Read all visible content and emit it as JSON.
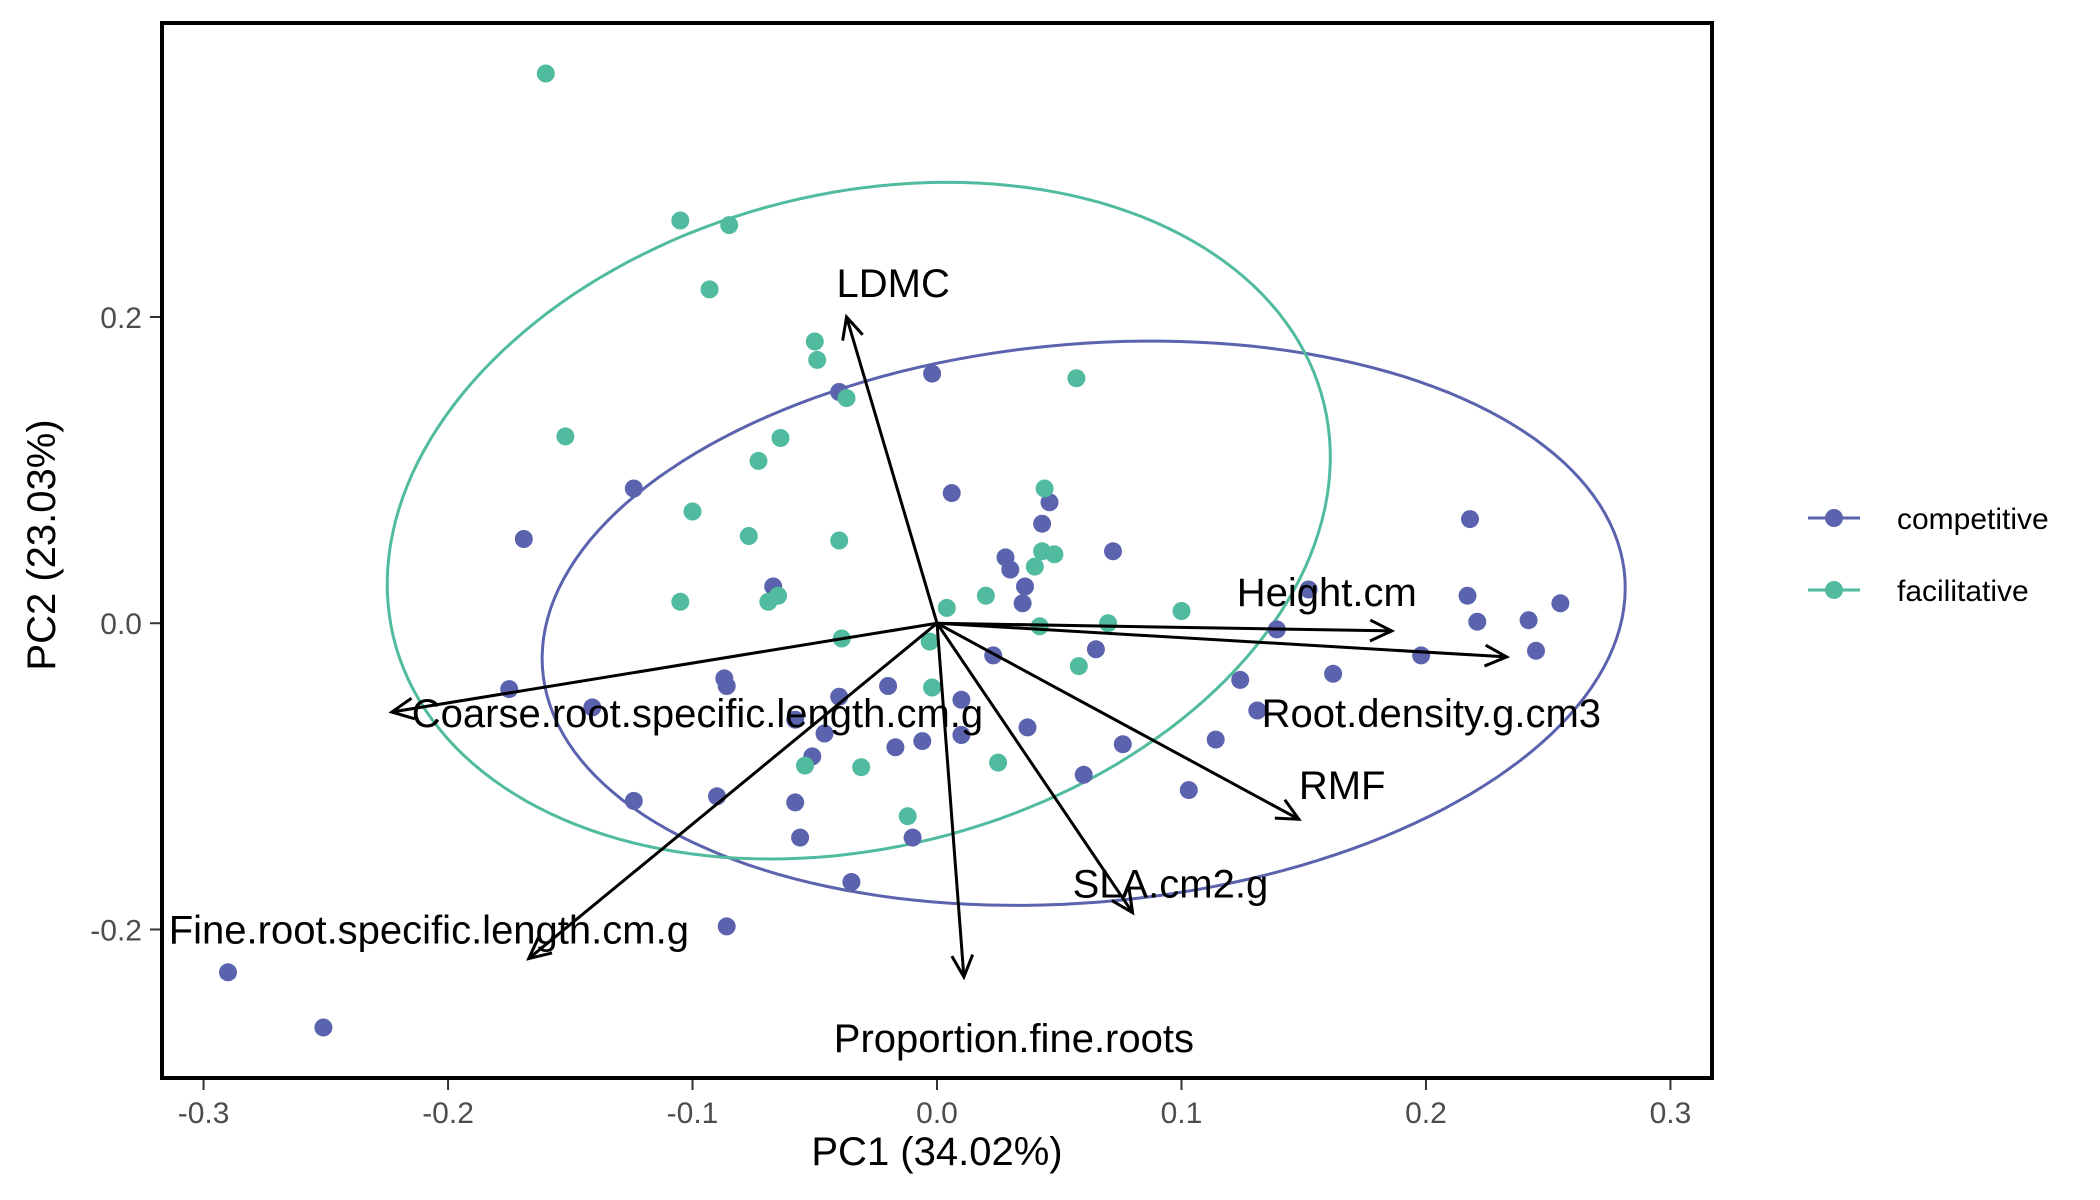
{
  "chart_data": {
    "type": "scatter",
    "xlabel": "PC1 (34.02%)",
    "ylabel": "PC2 (23.03%)",
    "xlim": [
      -0.317,
      0.317
    ],
    "ylim": [
      -0.297,
      0.392
    ],
    "x_ticks": [
      -0.3,
      -0.2,
      -0.1,
      0.0,
      0.1,
      0.2,
      0.3
    ],
    "x_tick_labels": [
      "-0.3",
      "-0.2",
      "-0.1",
      "0.0",
      "0.1",
      "0.2",
      "0.3"
    ],
    "y_ticks": [
      -0.2,
      0.0,
      0.2
    ],
    "y_tick_labels": [
      "-0.2",
      "0.0",
      "0.2"
    ],
    "grid": false,
    "legend_position": "right",
    "series": [
      {
        "name": "competitive",
        "color": "#5B63AE",
        "points": [
          [
            -0.29,
            -0.228
          ],
          [
            -0.251,
            -0.264
          ],
          [
            -0.169,
            0.055
          ],
          [
            -0.175,
            -0.043
          ],
          [
            -0.141,
            -0.055
          ],
          [
            -0.124,
            0.088
          ],
          [
            -0.124,
            -0.116
          ],
          [
            -0.09,
            -0.113
          ],
          [
            -0.087,
            -0.036
          ],
          [
            -0.086,
            -0.041
          ],
          [
            -0.086,
            -0.198
          ],
          [
            -0.067,
            0.024
          ],
          [
            -0.058,
            -0.063
          ],
          [
            -0.058,
            -0.117
          ],
          [
            -0.056,
            -0.14
          ],
          [
            -0.051,
            -0.087
          ],
          [
            -0.046,
            -0.072
          ],
          [
            -0.04,
            0.151
          ],
          [
            -0.04,
            -0.048
          ],
          [
            -0.035,
            -0.169
          ],
          [
            -0.02,
            -0.041
          ],
          [
            -0.017,
            -0.081
          ],
          [
            -0.01,
            -0.14
          ],
          [
            -0.006,
            -0.077
          ],
          [
            -0.002,
            0.163
          ],
          [
            0.006,
            0.085
          ],
          [
            0.01,
            -0.05
          ],
          [
            0.01,
            -0.073
          ],
          [
            0.023,
            -0.021
          ],
          [
            0.028,
            0.043
          ],
          [
            0.03,
            0.035
          ],
          [
            0.035,
            0.013
          ],
          [
            0.036,
            0.024
          ],
          [
            0.037,
            -0.068
          ],
          [
            0.043,
            0.065
          ],
          [
            0.046,
            0.079
          ],
          [
            0.065,
            -0.017
          ],
          [
            0.072,
            0.047
          ],
          [
            0.076,
            -0.079
          ],
          [
            0.06,
            -0.099
          ],
          [
            0.103,
            -0.109
          ],
          [
            0.114,
            -0.076
          ],
          [
            0.124,
            -0.037
          ],
          [
            0.131,
            -0.057
          ],
          [
            0.139,
            -0.004
          ],
          [
            0.152,
            0.022
          ],
          [
            0.162,
            -0.033
          ],
          [
            0.198,
            -0.021
          ],
          [
            0.218,
            0.068
          ],
          [
            0.217,
            0.018
          ],
          [
            0.221,
            0.001
          ],
          [
            0.242,
            0.002
          ],
          [
            0.245,
            -0.018
          ],
          [
            0.255,
            0.013
          ]
        ]
      },
      {
        "name": "facilitative",
        "color": "#50BB9E",
        "points": [
          [
            -0.16,
            0.359
          ],
          [
            -0.105,
            0.263
          ],
          [
            -0.085,
            0.26
          ],
          [
            -0.093,
            0.218
          ],
          [
            -0.152,
            0.122
          ],
          [
            -0.064,
            0.121
          ],
          [
            -0.073,
            0.106
          ],
          [
            -0.05,
            0.184
          ],
          [
            -0.049,
            0.172
          ],
          [
            -0.037,
            0.147
          ],
          [
            -0.1,
            0.073
          ],
          [
            -0.077,
            0.057
          ],
          [
            -0.04,
            0.054
          ],
          [
            -0.105,
            0.014
          ],
          [
            -0.069,
            0.014
          ],
          [
            -0.065,
            0.018
          ],
          [
            -0.039,
            -0.01
          ],
          [
            -0.054,
            -0.093
          ],
          [
            -0.031,
            -0.094
          ],
          [
            -0.003,
            -0.012
          ],
          [
            -0.002,
            -0.042
          ],
          [
            0.004,
            0.01
          ],
          [
            0.02,
            0.018
          ],
          [
            0.025,
            -0.091
          ],
          [
            0.04,
            0.037
          ],
          [
            0.043,
            0.047
          ],
          [
            0.044,
            0.088
          ],
          [
            0.048,
            0.045
          ],
          [
            0.042,
            -0.002
          ],
          [
            0.058,
            -0.028
          ],
          [
            0.057,
            0.16
          ],
          [
            0.07,
            0.0
          ],
          [
            0.1,
            0.008
          ],
          [
            -0.012,
            -0.126
          ]
        ]
      }
    ],
    "ellipses": [
      {
        "series": "competitive",
        "cx": 0.06,
        "cy": 0.0,
        "rx": 0.225,
        "ry": 0.18,
        "rotation_deg": 17
      },
      {
        "series": "facilitative",
        "cx": -0.032,
        "cy": 0.067,
        "rx": 0.182,
        "ry": 0.23,
        "rotation_deg": -27
      }
    ],
    "loadings": [
      {
        "label": "LDMC",
        "x": -0.037,
        "y": 0.2
      },
      {
        "label": "Height.cm",
        "x": 0.186,
        "y": -0.005
      },
      {
        "label": "Root.density.g.cm3",
        "x": 0.233,
        "y": -0.022
      },
      {
        "label": "RMF",
        "x": 0.148,
        "y": -0.128
      },
      {
        "label": "SLA.cm2.g",
        "x": 0.08,
        "y": -0.189
      },
      {
        "label": "Proportion.fine.roots",
        "x": 0.011,
        "y": -0.231
      },
      {
        "label": "Fine.root.specific.length.cm.g",
        "x": -0.167,
        "y": -0.219
      },
      {
        "label": "Coarse.root.specific.length.cm.g",
        "x": -0.223,
        "y": -0.058
      }
    ]
  }
}
